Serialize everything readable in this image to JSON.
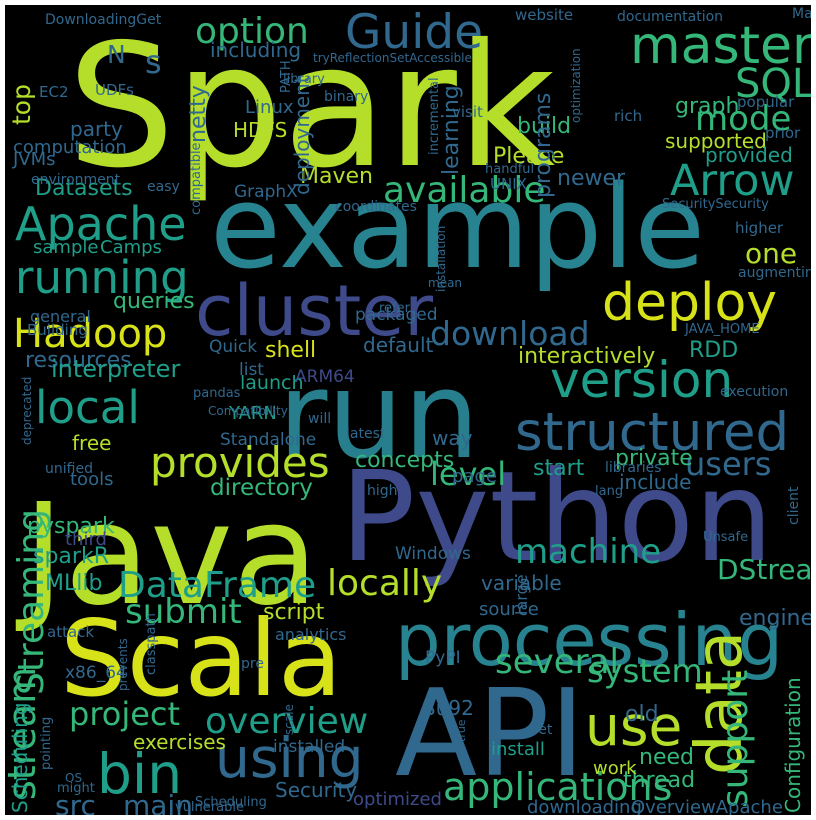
{
  "palette": {
    "background": "#000000",
    "yellow_green": "#b5de2b",
    "lime": "#d7e219",
    "green": "#35b779",
    "teal": "#26838f",
    "cyan_teal": "#1f9e89",
    "blue": "#31688e",
    "indigo": "#3e4a89",
    "purple": "#482878",
    "dark_teal": "#277f8e"
  },
  "words": [
    {
      "text": "Spark",
      "color": "#b5de2b"
    },
    {
      "text": "example",
      "color": "#26838f"
    },
    {
      "text": "Java",
      "color": "#b5de2b"
    },
    {
      "text": "Python",
      "color": "#3e4a89"
    },
    {
      "text": "run",
      "color": "#277f8e"
    },
    {
      "text": "API",
      "color": "#31688e"
    },
    {
      "text": "Scala",
      "color": "#d7e219"
    },
    {
      "text": "processing",
      "color": "#26838f"
    },
    {
      "text": "cluster",
      "color": "#3e4a89"
    },
    {
      "text": "Guide",
      "color": "#31688e"
    },
    {
      "text": "master",
      "color": "#35b779"
    },
    {
      "text": "SQL",
      "color": "#35b779"
    },
    {
      "text": "option",
      "color": "#35b779"
    },
    {
      "text": "Arrow",
      "color": "#1f9e89"
    },
    {
      "text": "mode",
      "color": "#35b779"
    },
    {
      "text": "Apache",
      "color": "#1f9e89"
    },
    {
      "text": "available",
      "color": "#35b779"
    },
    {
      "text": "deploy",
      "color": "#d7e219"
    },
    {
      "text": "running",
      "color": "#1f9e89"
    },
    {
      "text": "Hadoop",
      "color": "#d7e219"
    },
    {
      "text": "version",
      "color": "#1f9e89"
    },
    {
      "text": "local",
      "color": "#1f9e89"
    },
    {
      "text": "structured",
      "color": "#31688e"
    },
    {
      "text": "provides",
      "color": "#b5de2b"
    },
    {
      "text": "download",
      "color": "#31688e"
    },
    {
      "text": "users",
      "color": "#31688e"
    },
    {
      "text": "level",
      "color": "#35b779"
    },
    {
      "text": "Streaming",
      "color": "#35b779"
    },
    {
      "text": "DataFrame",
      "color": "#1f9e89"
    },
    {
      "text": "locally",
      "color": "#b5de2b"
    },
    {
      "text": "machine",
      "color": "#1f9e89"
    },
    {
      "text": "submit",
      "color": "#35b779"
    },
    {
      "text": "data",
      "color": "#b5de2b"
    },
    {
      "text": "several",
      "color": "#35b779"
    },
    {
      "text": "system",
      "color": "#35b779"
    },
    {
      "text": "project",
      "color": "#35b779"
    },
    {
      "text": "overview",
      "color": "#1f9e89"
    },
    {
      "text": "use",
      "color": "#b5de2b"
    },
    {
      "text": "bin",
      "color": "#1f9e89"
    },
    {
      "text": "using",
      "color": "#31688e"
    },
    {
      "text": "applications",
      "color": "#35b779"
    },
    {
      "text": "support",
      "color": "#35b779"
    },
    {
      "text": "Configuration",
      "color": "#35b779"
    },
    {
      "text": "stream",
      "color": "#35b779"
    },
    {
      "text": "src",
      "color": "#31688e"
    },
    {
      "text": "main",
      "color": "#31688e"
    },
    {
      "text": "interactively",
      "color": "#b5de2b"
    },
    {
      "text": "shell",
      "color": "#d7e219"
    },
    {
      "text": "top",
      "color": "#b5de2b"
    },
    {
      "text": "one",
      "color": "#b5de2b"
    },
    {
      "text": "DStreams",
      "color": "#35b779"
    },
    {
      "text": "Datasets",
      "color": "#1f9e89"
    },
    {
      "text": "queries",
      "color": "#35b779"
    },
    {
      "text": "resources",
      "color": "#31688e"
    },
    {
      "text": "interpreter",
      "color": "#1f9e89"
    },
    {
      "text": "pyspark",
      "color": "#35b779"
    },
    {
      "text": "sparkR",
      "color": "#1f9e89"
    },
    {
      "text": "MLlib",
      "color": "#1f9e89"
    },
    {
      "text": "Scheduling",
      "color": "#1f9e89"
    },
    {
      "text": "Maven",
      "color": "#b5de2b"
    },
    {
      "text": "Please",
      "color": "#b5de2b"
    },
    {
      "text": "build",
      "color": "#35b779"
    },
    {
      "text": "supported",
      "color": "#b5de2b"
    },
    {
      "text": "provided",
      "color": "#1f9e89"
    },
    {
      "text": "newer",
      "color": "#31688e"
    },
    {
      "text": "graph",
      "color": "#35b779"
    },
    {
      "text": "Quick",
      "color": "#31688e"
    },
    {
      "text": "free",
      "color": "#b5de2b"
    },
    {
      "text": "tools",
      "color": "#31688e"
    },
    {
      "text": "launch",
      "color": "#1f9e89"
    },
    {
      "text": "list",
      "color": "#31688e"
    },
    {
      "text": "YARN",
      "color": "#1f9e89"
    },
    {
      "text": "ARM64",
      "color": "#3e4a89"
    },
    {
      "text": "default",
      "color": "#31688e"
    },
    {
      "text": "RDD",
      "color": "#1f9e89"
    },
    {
      "text": "directory",
      "color": "#35b779"
    },
    {
      "text": "concepts",
      "color": "#35b779"
    },
    {
      "text": "start",
      "color": "#1f9e89"
    },
    {
      "text": "private",
      "color": "#35b779"
    },
    {
      "text": "include",
      "color": "#31688e"
    },
    {
      "text": "way",
      "color": "#31688e"
    },
    {
      "text": "page",
      "color": "#31688e"
    },
    {
      "text": "libraries",
      "color": "#31688e"
    },
    {
      "text": "engine",
      "color": "#31688e"
    },
    {
      "text": "variable",
      "color": "#31688e"
    },
    {
      "text": "source",
      "color": "#31688e"
    },
    {
      "text": "script",
      "color": "#b5de2b"
    },
    {
      "text": "analytics",
      "color": "#31688e"
    },
    {
      "text": "exercises",
      "color": "#b5de2b"
    },
    {
      "text": "installed",
      "color": "#31688e"
    },
    {
      "text": "Security",
      "color": "#31688e"
    },
    {
      "text": "need",
      "color": "#35b779"
    },
    {
      "text": "thread",
      "color": "#35b779"
    },
    {
      "text": "work",
      "color": "#b5de2b"
    },
    {
      "text": "install",
      "color": "#1f9e89"
    },
    {
      "text": "old",
      "color": "#31688e"
    },
    {
      "text": "PyPI",
      "color": "#31688e"
    },
    {
      "text": "Windows",
      "color": "#31688e"
    },
    {
      "text": "x86_64",
      "color": "#31688e"
    },
    {
      "text": "optimized",
      "color": "#3e4a89"
    },
    {
      "text": "downloading",
      "color": "#31688e"
    },
    {
      "text": "OverviewApache",
      "color": "#31688e"
    },
    {
      "text": "HDFS",
      "color": "#b5de2b"
    },
    {
      "text": "Linux",
      "color": "#31688e"
    },
    {
      "text": "netty",
      "color": "#31688e"
    },
    {
      "text": "learning",
      "color": "#31688e"
    },
    {
      "text": "programs",
      "color": "#31688e"
    },
    {
      "text": "deployment",
      "color": "#31688e"
    },
    {
      "text": "including",
      "color": "#31688e"
    },
    {
      "text": "party",
      "color": "#31688e"
    },
    {
      "text": "computation",
      "color": "#31688e"
    },
    {
      "text": "JVMs",
      "color": "#31688e"
    },
    {
      "text": "GraphX",
      "color": "#31688e"
    },
    {
      "text": "sample",
      "color": "#1f9e89"
    },
    {
      "text": "Camps",
      "color": "#1f9e89"
    },
    {
      "text": "general",
      "color": "#31688e"
    },
    {
      "text": "Building",
      "color": "#31688e"
    },
    {
      "text": "packaged",
      "color": "#31688e"
    },
    {
      "text": "environment",
      "color": "#31688e"
    },
    {
      "text": "easy",
      "color": "#31688e"
    },
    {
      "text": "UDFs",
      "color": "#31688e"
    },
    {
      "text": "EC2",
      "color": "#31688e"
    },
    {
      "text": "binary",
      "color": "#31688e"
    },
    {
      "text": "visit",
      "color": "#31688e"
    },
    {
      "text": "rich",
      "color": "#31688e"
    },
    {
      "text": "popular",
      "color": "#31688e"
    },
    {
      "text": "prior",
      "color": "#31688e"
    },
    {
      "text": "higher",
      "color": "#31688e"
    },
    {
      "text": "augmenting",
      "color": "#31688e"
    },
    {
      "text": "execution",
      "color": "#31688e"
    },
    {
      "text": "JAVA_HOME",
      "color": "#31688e"
    },
    {
      "text": "Standalone",
      "color": "#31688e"
    },
    {
      "text": "pandas",
      "color": "#31688e"
    },
    {
      "text": "Compatibility",
      "color": "#31688e"
    },
    {
      "text": "latest",
      "color": "#31688e"
    },
    {
      "text": "will",
      "color": "#31688e"
    },
    {
      "text": "high",
      "color": "#31688e"
    },
    {
      "text": "unified",
      "color": "#31688e"
    },
    {
      "text": "third",
      "color": "#3e4a89"
    },
    {
      "text": "attack",
      "color": "#31688e"
    },
    {
      "text": "pre",
      "color": "#31688e"
    },
    {
      "text": "set",
      "color": "#31688e"
    },
    {
      "text": "large",
      "color": "#31688e"
    },
    {
      "text": "client",
      "color": "#31688e"
    },
    {
      "text": "website",
      "color": "#31688e"
    },
    {
      "text": "documentation",
      "color": "#31688e"
    },
    {
      "text": "Mac",
      "color": "#31688e"
    },
    {
      "text": "DownloadingGet",
      "color": "#31688e"
    },
    {
      "text": "tryReflectionSetAccessible",
      "color": "#31688e"
    },
    {
      "text": "SecuritySecurity",
      "color": "#31688e"
    },
    {
      "text": "UNIX",
      "color": "#31688e"
    },
    {
      "text": "Scheduling",
      "color": "#31688e"
    },
    {
      "text": "vulnerable",
      "color": "#31688e"
    },
    {
      "text": "OS",
      "color": "#31688e"
    },
    {
      "text": "refer",
      "color": "#31688e"
    },
    {
      "text": "incremental",
      "color": "#31688e"
    },
    {
      "text": "compatible",
      "color": "#31688e"
    },
    {
      "text": "handful",
      "color": "#31688e"
    },
    {
      "text": "coordinates",
      "color": "#31688e"
    },
    {
      "text": "deprecated",
      "color": "#31688e"
    },
    {
      "text": "classpath",
      "color": "#31688e"
    },
    {
      "text": "pointing",
      "color": "#31688e"
    },
    {
      "text": "might",
      "color": "#31688e"
    },
    {
      "text": "prevents",
      "color": "#31688e"
    },
    {
      "text": "installation",
      "color": "#31688e"
    },
    {
      "text": "mean",
      "color": "#31688e"
    },
    {
      "text": "N",
      "color": "#31688e"
    },
    {
      "text": "s",
      "color": "#31688e"
    },
    {
      "text": "PATH",
      "color": "#31688e"
    },
    {
      "text": "lang",
      "color": "#31688e"
    },
    {
      "text": "8u92",
      "color": "#31688e"
    },
    {
      "text": "Unsafe",
      "color": "#31688e"
    },
    {
      "text": "library",
      "color": "#31688e"
    },
    {
      "text": "optimization",
      "color": "#31688e"
    },
    {
      "text": "true",
      "color": "#31688e"
    },
    {
      "text": "scale",
      "color": "#31688e"
    }
  ]
}
